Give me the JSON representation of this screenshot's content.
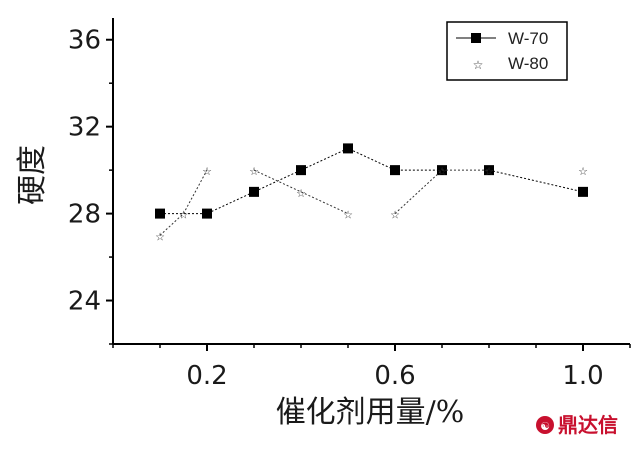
{
  "chart_data": {
    "type": "scatter",
    "title": "",
    "xlabel": "催化剂用量/%",
    "ylabel": "硬度",
    "xlim": [
      0.0,
      1.1
    ],
    "ylim": [
      22,
      37
    ],
    "xticks": [
      0.2,
      0.6,
      1.0
    ],
    "xtick_labels": [
      "0.2",
      "0.6",
      "1.0"
    ],
    "yticks": [
      24,
      28,
      32,
      36
    ],
    "ytick_labels": [
      "24",
      "28",
      "32",
      "36"
    ],
    "grid": false,
    "legend_position": "top-right",
    "series": [
      {
        "name": "W-70",
        "marker": "filled-square",
        "line_style": "dotted",
        "color": "#000000",
        "segments": [
          [
            [
              0.1,
              28
            ],
            [
              0.2,
              28
            ],
            [
              0.3,
              29
            ],
            [
              0.4,
              30
            ],
            [
              0.5,
              31
            ],
            [
              0.6,
              30
            ],
            [
              0.7,
              30
            ]
          ],
          [
            [
              0.8,
              30
            ],
            [
              1.0,
              29
            ]
          ]
        ]
      },
      {
        "name": "W-80",
        "marker": "star",
        "line_style": "dotted",
        "color": "#333333",
        "segments": [
          [
            [
              0.1,
              27
            ],
            [
              0.15,
              28
            ],
            [
              0.2,
              30
            ]
          ],
          [
            [
              0.3,
              30
            ],
            [
              0.4,
              29
            ],
            [
              0.5,
              28
            ]
          ],
          [
            [
              0.6,
              28
            ],
            [
              0.7,
              30
            ],
            [
              0.8,
              30
            ]
          ],
          [
            [
              1.0,
              30
            ]
          ]
        ]
      }
    ]
  },
  "watermark": {
    "text": "鼎达信",
    "color": "#c8102e"
  }
}
